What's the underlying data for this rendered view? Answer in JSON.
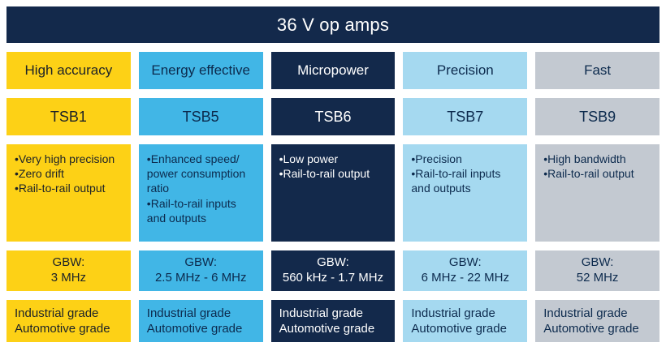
{
  "title": "36 V op amps",
  "colors": {
    "navy": "#13294b",
    "yellow": "#fdd116",
    "medium_blue": "#41b6e6",
    "light_blue": "#a5d9f0",
    "gray": "#c3c9d1",
    "text_on_navy": "#ffffff",
    "text_dark": "#0c2a4d"
  },
  "columns": [
    {
      "category": "High accuracy",
      "product": "TSB1",
      "features": [
        "Very high precision",
        "Zero drift",
        "Rail-to-rail output"
      ],
      "gbw_label": "GBW:",
      "gbw_value": "3 MHz",
      "grades": [
        "Industrial grade",
        "Automotive grade"
      ]
    },
    {
      "category": "Energy effective",
      "product": "TSB5",
      "features": [
        "Enhanced speed/ power consumption ratio",
        "Rail-to-rail inputs and outputs"
      ],
      "gbw_label": "GBW:",
      "gbw_value": "2.5 MHz - 6 MHz",
      "grades": [
        "Industrial grade",
        "Automotive grade"
      ]
    },
    {
      "category": "Micropower",
      "product": "TSB6",
      "features": [
        "Low power",
        "Rail-to-rail output"
      ],
      "gbw_label": "GBW:",
      "gbw_value": "560 kHz - 1.7 MHz",
      "grades": [
        "Industrial grade",
        "Automotive grade"
      ]
    },
    {
      "category": "Precision",
      "product": "TSB7",
      "features": [
        "Precision",
        "Rail-to-rail inputs and outputs"
      ],
      "gbw_label": "GBW:",
      "gbw_value": "6 MHz - 22 MHz",
      "grades": [
        "Industrial grade",
        "Automotive grade"
      ]
    },
    {
      "category": "Fast",
      "product": "TSB9",
      "features": [
        "High bandwidth",
        "Rail-to-rail output"
      ],
      "gbw_label": "GBW:",
      "gbw_value": "52 MHz",
      "grades": [
        "Industrial grade",
        "Automotive grade"
      ]
    }
  ]
}
